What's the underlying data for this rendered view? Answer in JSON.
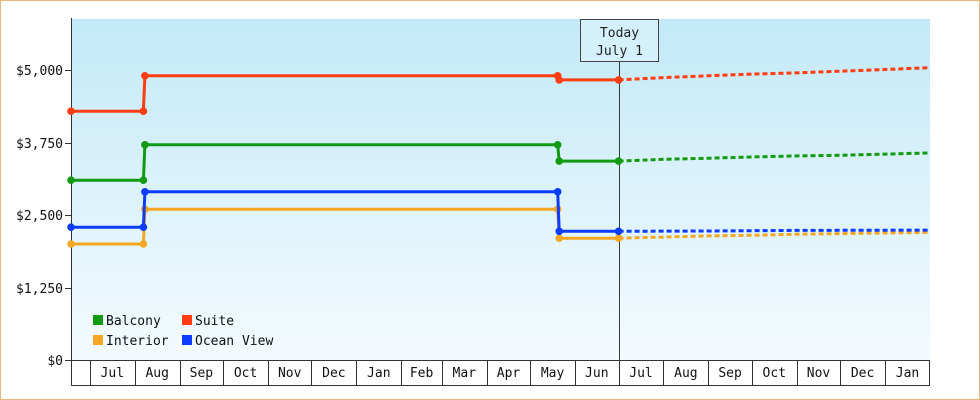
{
  "chart_data": {
    "type": "line",
    "x_range": [
      "Jun 18",
      "Jan 31"
    ],
    "x_ticks": [
      "",
      "Jul",
      "Aug",
      "Sep",
      "Oct",
      "Nov",
      "Dec",
      "Jan",
      "Feb",
      "Mar",
      "Apr",
      "May",
      "Jun",
      "Jul",
      "Aug",
      "Sep",
      "Oct",
      "Nov",
      "Dec",
      "Jan"
    ],
    "ylim": [
      0,
      5880
    ],
    "y_ticks": [
      0,
      1250,
      2500,
      3750,
      5000
    ],
    "y_tick_labels": [
      "$0",
      "$1,250",
      "$2,500",
      "$3,750",
      "$5,000"
    ],
    "grid": false,
    "legend": "bottom-left",
    "today": {
      "label": "Today",
      "date": "July 1"
    },
    "series": [
      {
        "name": "Balcony",
        "color": "#139a13",
        "points": [
          [
            "Jun 18",
            3100
          ],
          [
            "Aug 7",
            3100
          ],
          [
            "Aug 8",
            3710
          ],
          [
            "May 20",
            3710
          ],
          [
            "May 21",
            3430
          ],
          [
            "Jul 1",
            3430
          ]
        ],
        "forecast": [
          [
            "Jul 1",
            3430
          ],
          [
            "Aug 1",
            3460
          ],
          [
            "Sep 1",
            3480
          ],
          [
            "Oct 1",
            3500
          ],
          [
            "Nov 1",
            3520
          ],
          [
            "Dec 1",
            3530
          ],
          [
            "Jan 1",
            3550
          ],
          [
            "Jan 31",
            3570
          ]
        ]
      },
      {
        "name": "Suite",
        "color": "#ff3c12",
        "points": [
          [
            "Jun 18",
            4290
          ],
          [
            "Aug 7",
            4290
          ],
          [
            "Aug 8",
            4900
          ],
          [
            "May 20",
            4900
          ],
          [
            "May 21",
            4830
          ],
          [
            "Jul 1",
            4830
          ]
        ],
        "forecast": [
          [
            "Jul 1",
            4830
          ],
          [
            "Aug 1",
            4870
          ],
          [
            "Sep 1",
            4900
          ],
          [
            "Oct 1",
            4930
          ],
          [
            "Nov 1",
            4950
          ],
          [
            "Dec 1",
            4980
          ],
          [
            "Jan 1",
            5010
          ],
          [
            "Jan 31",
            5040
          ]
        ]
      },
      {
        "name": "Interior",
        "color": "#f5a623",
        "points": [
          [
            "Jun 18",
            2000
          ],
          [
            "Aug 7",
            2000
          ],
          [
            "Aug 8",
            2600
          ],
          [
            "May 20",
            2600
          ],
          [
            "May 21",
            2100
          ],
          [
            "Jul 1",
            2100
          ]
        ],
        "forecast": [
          [
            "Jul 1",
            2100
          ],
          [
            "Aug 1",
            2120
          ],
          [
            "Sep 1",
            2140
          ],
          [
            "Oct 1",
            2150
          ],
          [
            "Nov 1",
            2170
          ],
          [
            "Dec 1",
            2180
          ],
          [
            "Jan 1",
            2190
          ],
          [
            "Jan 31",
            2200
          ]
        ]
      },
      {
        "name": "Ocean View",
        "color": "#0b3cff",
        "points": [
          [
            "Jun 18",
            2290
          ],
          [
            "Aug 7",
            2290
          ],
          [
            "Aug 8",
            2900
          ],
          [
            "May 20",
            2900
          ],
          [
            "May 21",
            2220
          ],
          [
            "Jul 1",
            2220
          ]
        ],
        "forecast": [
          [
            "Jul 1",
            2220
          ],
          [
            "Sep 1",
            2225
          ],
          [
            "Nov 1",
            2235
          ],
          [
            "Jan 31",
            2240
          ]
        ]
      }
    ]
  }
}
